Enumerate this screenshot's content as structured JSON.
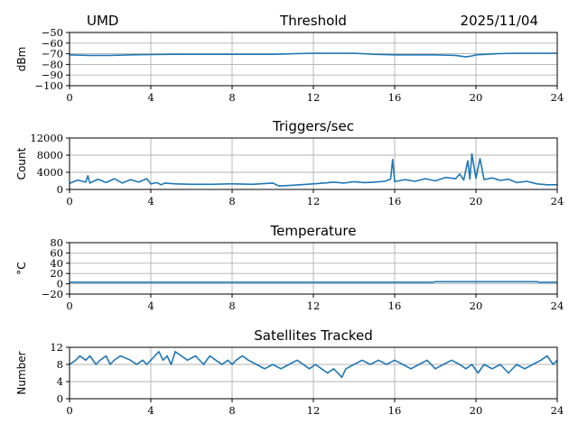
{
  "header": {
    "site": "UMD",
    "date": "2025/11/04"
  },
  "colors": {
    "series": "#1f77b4",
    "grid": "#b0b0b0",
    "axis": "#000000"
  },
  "chart_data": [
    {
      "type": "line",
      "title": "Threshold",
      "ylabel": "dBm",
      "xlabel": "",
      "xlim": [
        0,
        24
      ],
      "ylim": [
        -100,
        -50
      ],
      "xticks": [
        0,
        4,
        8,
        12,
        16,
        20,
        24
      ],
      "xtick_labels": [
        "0",
        "4",
        "8",
        "12",
        "16",
        "20",
        "24"
      ],
      "yticks": [
        -50,
        -60,
        -70,
        -80,
        -90,
        -100
      ],
      "ytick_labels": [
        "−50",
        "−60",
        "−70",
        "−80",
        "−90",
        "−100"
      ],
      "grid": true,
      "series": [
        {
          "x": [
            0,
            1,
            2,
            3,
            4,
            5,
            6,
            7,
            8,
            9,
            10,
            11,
            12,
            13,
            14,
            15,
            16,
            17,
            18,
            19,
            19.5,
            19.8,
            20,
            20.5,
            21,
            22,
            23,
            24
          ],
          "values": [
            -71,
            -71.5,
            -71.5,
            -71,
            -70.8,
            -70.5,
            -70.5,
            -70.5,
            -70.5,
            -70.5,
            -70.5,
            -70,
            -69.5,
            -69.5,
            -69.5,
            -70.5,
            -71,
            -71,
            -71,
            -71.5,
            -73,
            -72,
            -71,
            -70.5,
            -70,
            -69.5,
            -69.5,
            -69.5
          ]
        }
      ]
    },
    {
      "type": "line",
      "title": "Triggers/sec",
      "ylabel": "Count",
      "xlabel": "",
      "xlim": [
        0,
        24
      ],
      "ylim": [
        0,
        12000
      ],
      "xticks": [
        0,
        4,
        8,
        12,
        16,
        20,
        24
      ],
      "xtick_labels": [
        "0",
        "4",
        "8",
        "12",
        "16",
        "20",
        "24"
      ],
      "yticks": [
        0,
        4000,
        8000,
        12000
      ],
      "ytick_labels": [
        "0",
        "4000",
        "8000",
        "12000"
      ],
      "grid": true,
      "series": [
        {
          "x": [
            0,
            0.4,
            0.8,
            0.9,
            1.0,
            1.4,
            1.8,
            2.2,
            2.6,
            3.0,
            3.4,
            3.8,
            4.0,
            4.3,
            4.5,
            4.7,
            5.2,
            6.0,
            7.0,
            8.0,
            9.0,
            10.0,
            10.3,
            11.0,
            12.0,
            12.5,
            13.0,
            13.5,
            14.0,
            14.5,
            15.0,
            15.5,
            15.8,
            15.9,
            16.0,
            16.5,
            17.0,
            17.5,
            18.0,
            18.5,
            19.0,
            19.2,
            19.4,
            19.6,
            19.7,
            19.8,
            20.0,
            20.2,
            20.4,
            20.8,
            21.2,
            21.6,
            22.0,
            22.5,
            23.0,
            23.5,
            24.0
          ],
          "values": [
            1400,
            2200,
            1700,
            3200,
            1500,
            2400,
            1600,
            2500,
            1500,
            2300,
            1700,
            2500,
            1300,
            1600,
            1100,
            1500,
            1300,
            1200,
            1200,
            1300,
            1200,
            1500,
            800,
            1000,
            1300,
            1500,
            1700,
            1500,
            1800,
            1600,
            1700,
            1900,
            2400,
            7000,
            1800,
            2300,
            1900,
            2500,
            2000,
            2800,
            2500,
            3600,
            2200,
            6700,
            2400,
            8300,
            2600,
            7200,
            2300,
            2700,
            2100,
            2400,
            1600,
            1900,
            1300,
            1100,
            1100
          ]
        }
      ]
    },
    {
      "type": "line",
      "title": "Temperature",
      "ylabel": "°C",
      "xlabel": "",
      "xlim": [
        0,
        24
      ],
      "ylim": [
        -20,
        80
      ],
      "xticks": [
        0,
        4,
        8,
        12,
        16,
        20,
        24
      ],
      "xtick_labels": [
        "0",
        "4",
        "8",
        "12",
        "16",
        "20",
        "24"
      ],
      "yticks": [
        80,
        60,
        40,
        20,
        0,
        -20
      ],
      "ytick_labels": [
        "80",
        "60",
        "40",
        "20",
        "0",
        "−20"
      ],
      "grid": true,
      "series": [
        {
          "x": [
            0,
            4,
            8,
            12,
            16,
            17.9,
            18,
            20,
            22,
            23,
            23.1,
            24
          ],
          "values": [
            3,
            3,
            3,
            3,
            3,
            3,
            4,
            4,
            4,
            4,
            3,
            3
          ]
        }
      ]
    },
    {
      "type": "line",
      "title": "Satellites Tracked",
      "ylabel": "Number",
      "xlabel": "",
      "xlim": [
        0,
        24
      ],
      "ylim": [
        0,
        12
      ],
      "xticks": [
        0,
        4,
        8,
        12,
        16,
        20,
        24
      ],
      "xtick_labels": [
        "0",
        "4",
        "8",
        "12",
        "16",
        "20",
        "24"
      ],
      "yticks": [
        0,
        4,
        8,
        12
      ],
      "ytick_labels": [
        "0",
        "4",
        "8",
        "12"
      ],
      "grid": true,
      "series": [
        {
          "x": [
            0,
            0.3,
            0.5,
            0.8,
            1.0,
            1.3,
            1.5,
            1.8,
            2.0,
            2.2,
            2.5,
            3.0,
            3.3,
            3.6,
            3.8,
            4.0,
            4.2,
            4.4,
            4.6,
            4.8,
            5.0,
            5.2,
            5.5,
            5.8,
            6.2,
            6.6,
            6.9,
            7.2,
            7.5,
            7.8,
            8.0,
            8.2,
            8.5,
            8.8,
            9.2,
            9.6,
            10.0,
            10.4,
            10.8,
            11.2,
            11.5,
            11.8,
            12.1,
            12.4,
            12.7,
            13.0,
            13.2,
            13.4,
            13.6,
            14.0,
            14.4,
            14.8,
            15.2,
            15.6,
            16.0,
            16.4,
            16.8,
            17.2,
            17.6,
            18.0,
            18.4,
            18.8,
            19.2,
            19.5,
            19.8,
            20.1,
            20.4,
            20.8,
            21.2,
            21.6,
            22.0,
            22.4,
            22.8,
            23.2,
            23.5,
            23.8,
            24.0
          ],
          "values": [
            8,
            9,
            10,
            9,
            10,
            8,
            9,
            10,
            8,
            9,
            10,
            9,
            8,
            9,
            8,
            9,
            10,
            11,
            9,
            10,
            8,
            11,
            10,
            9,
            10,
            8,
            10,
            9,
            8,
            9,
            8,
            9,
            10,
            9,
            8,
            7,
            8,
            7,
            8,
            9,
            8,
            7,
            8,
            7,
            6,
            7,
            6,
            5,
            7,
            8,
            9,
            8,
            9,
            8,
            9,
            8,
            7,
            8,
            9,
            7,
            8,
            9,
            8,
            7,
            8,
            6,
            8,
            7,
            8,
            6,
            8,
            7,
            8,
            9,
            10,
            8,
            9
          ]
        }
      ]
    }
  ]
}
